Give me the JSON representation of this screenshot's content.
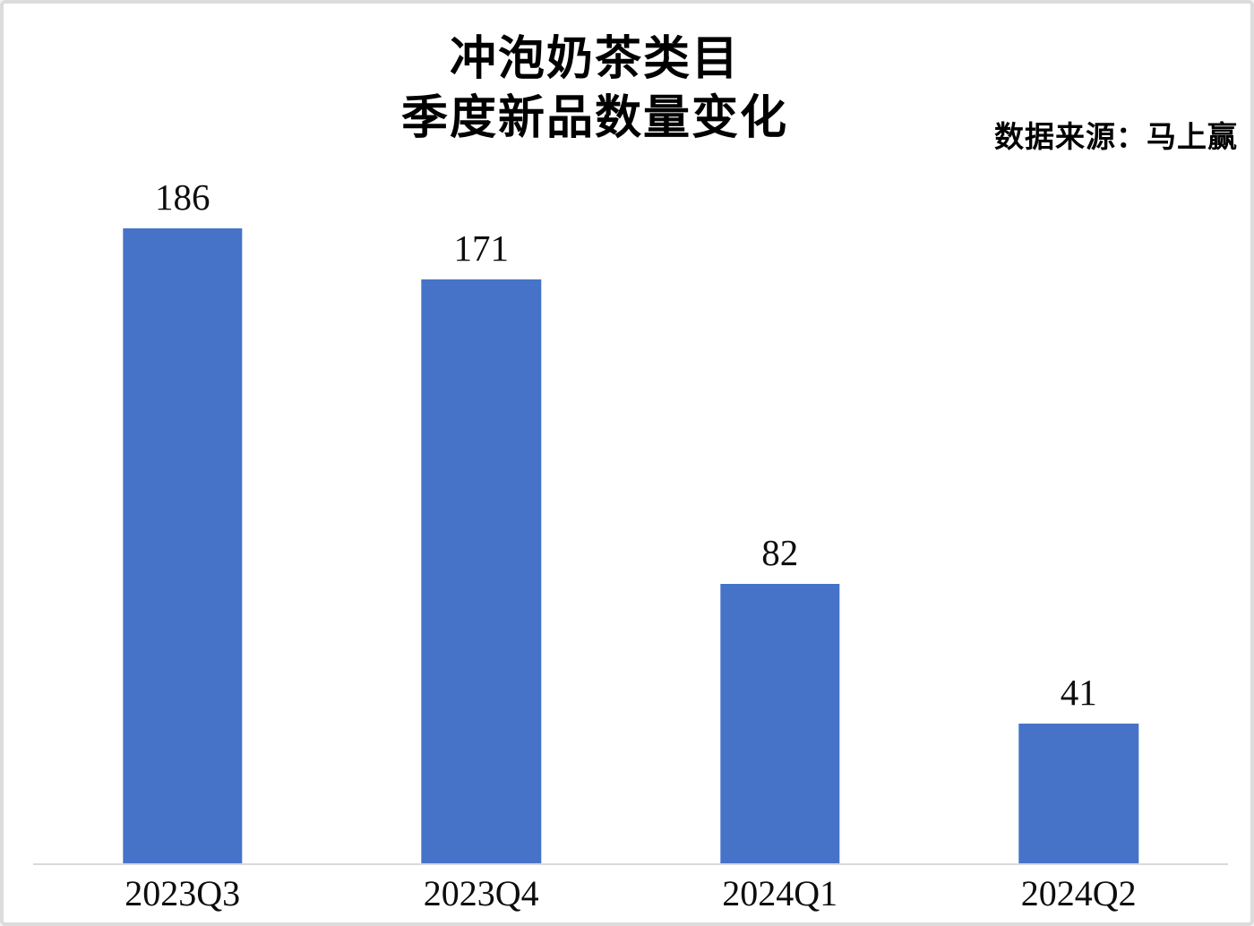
{
  "chart_data": {
    "type": "bar",
    "title_line1": "冲泡奶茶类目",
    "title_line2": "季度新品数量变化",
    "source": "数据来源：马上赢",
    "categories": [
      "2023Q3",
      "2023Q4",
      "2024Q1",
      "2024Q2"
    ],
    "values": [
      186,
      171,
      82,
      41
    ],
    "bar_color": "#4673C8",
    "axis_line_color": "#d9d9d9",
    "label_color": "#0d0d0d",
    "ylim": [
      0,
      200
    ],
    "grid": false,
    "legend": "none",
    "xlabel": "",
    "ylabel": ""
  }
}
